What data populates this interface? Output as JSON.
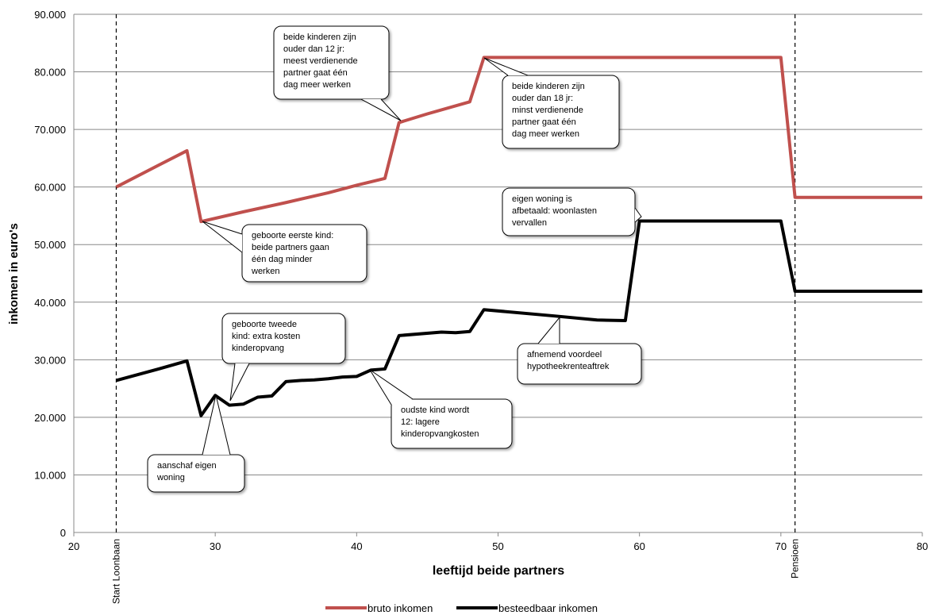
{
  "chart_data": {
    "type": "line",
    "xlabel": "leeftijd beide partners",
    "ylabel": "inkomen in euro's",
    "xlim": [
      20,
      80
    ],
    "xticks": [
      20,
      30,
      40,
      50,
      60,
      70,
      80
    ],
    "ylim": [
      0,
      90000
    ],
    "yticks": [
      0,
      {
        "value": 10000,
        "label": "10.000"
      },
      {
        "value": 20000,
        "label": "20.000"
      },
      {
        "value": 30000,
        "label": "30.000"
      },
      {
        "value": 40000,
        "label": "40.000"
      },
      {
        "value": 50000,
        "label": "50.000"
      },
      {
        "value": 60000,
        "label": "60.000"
      },
      {
        "value": 70000,
        "label": "70.000"
      },
      {
        "value": 80000,
        "label": "80.000"
      },
      {
        "value": 90000,
        "label": "90.000"
      }
    ],
    "grid": true,
    "series": [
      {
        "name": "bruto inkomen",
        "color": "#c0504d",
        "x": [
          23,
          26,
          28,
          29,
          32,
          35,
          38,
          40,
          42,
          43,
          45,
          48,
          49,
          70,
          71,
          80
        ],
        "values": [
          60000,
          63800,
          66300,
          54000,
          55700,
          57300,
          59000,
          60300,
          61500,
          71200,
          72700,
          74800,
          82500,
          82500,
          58200,
          58200
        ]
      },
      {
        "name": "besteedbaar inkomen",
        "color": "#000000",
        "x": [
          23,
          26,
          28,
          29,
          30,
          31,
          32,
          33,
          34,
          35,
          36,
          37,
          38,
          39,
          40,
          41,
          42,
          43,
          46,
          47,
          48,
          49,
          54,
          57,
          59,
          60,
          70,
          71,
          80
        ],
        "values": [
          26400,
          28400,
          29800,
          20300,
          23800,
          22100,
          22300,
          23500,
          23700,
          26200,
          26400,
          26500,
          26700,
          27000,
          27100,
          28200,
          28400,
          34200,
          34800,
          34700,
          34900,
          38700,
          37600,
          36900,
          36800,
          54100,
          54100,
          41900,
          41900
        ]
      }
    ],
    "vlines": [
      {
        "x": 23,
        "label": "Start Loonbaan"
      },
      {
        "x": 71,
        "label": "Pensioen"
      }
    ],
    "annotations": [
      [
        "beide kinderen zijn",
        "ouder dan 12 jr:",
        "meest verdienende",
        "partner gaat één",
        "dag meer werken"
      ],
      [
        "beide kinderen zijn",
        "ouder dan 18 jr:",
        "minst verdienende",
        "partner gaat één",
        "dag meer werken"
      ],
      [
        "geboorte eerste kind:",
        "beide partners gaan",
        "één dag minder",
        "werken"
      ],
      [
        "eigen woning is",
        "afbetaald: woonlasten",
        "vervallen"
      ],
      [
        "geboorte tweede",
        "kind: extra kosten",
        "kinderopvang"
      ],
      [
        "oudste kind wordt",
        "12: lagere",
        "kinderopvangkosten"
      ],
      [
        "afnemend voordeel",
        "hypotheekrenteaftrek"
      ],
      [
        "aanschaf eigen",
        "woning"
      ]
    ]
  }
}
